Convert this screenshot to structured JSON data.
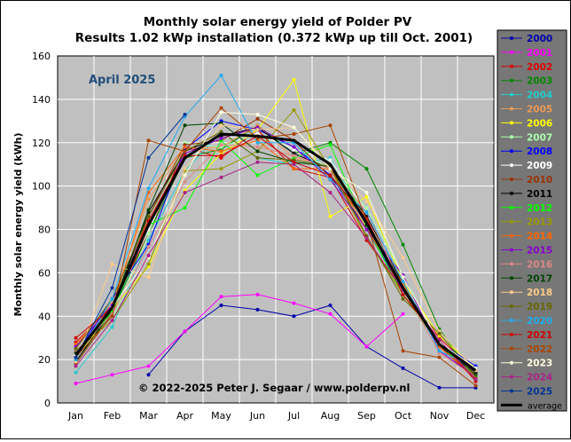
{
  "chart_data": {
    "type": "line",
    "title": "Monthly solar energy yield of Polder PV",
    "subtitle": "Results 1.02 kWp installation (0.372 kWp up till Oct. 2001)",
    "annotation": "April 2025",
    "copyright": "© 2022-2025 Peter J. Segaar / www.polderpv.nl",
    "ylabel": "Monthly solar energy yield (kWh)",
    "xlabel": "",
    "categories": [
      "Jan",
      "Feb",
      "Mar",
      "Apr",
      "May",
      "Jun",
      "Jul",
      "Aug",
      "Sep",
      "Oct",
      "Nov",
      "Dec"
    ],
    "yticks": [
      0,
      20,
      40,
      60,
      80,
      100,
      120,
      140,
      160
    ],
    "ylim": [
      0,
      160
    ],
    "grid": true,
    "legend_position": "right",
    "plot_background": "#c0c0c0",
    "average_label": "average",
    "series": [
      {
        "name": "2000",
        "color": "#0000aa",
        "values": [
          null,
          null,
          13,
          33,
          45,
          43,
          40,
          45,
          26,
          16,
          7,
          7
        ]
      },
      {
        "name": "2001",
        "color": "#ff00ff",
        "values": [
          9,
          13,
          17,
          33,
          49,
          50,
          46,
          41,
          26,
          41,
          null,
          null
        ]
      },
      {
        "name": "2002",
        "color": "#dd0000",
        "values": [
          28,
          45,
          78,
          118,
          113,
          126,
          108,
          104,
          75,
          52,
          30,
          14
        ]
      },
      {
        "name": "2003",
        "color": "#008800",
        "values": [
          19,
          42,
          78,
          113,
          117,
          128,
          115,
          120,
          108,
          73,
          34,
          11
        ]
      },
      {
        "name": "2004",
        "color": "#22cccc",
        "values": [
          14,
          35,
          75,
          107,
          125,
          113,
          110,
          113,
          84,
          55,
          27,
          16
        ]
      },
      {
        "name": "2005",
        "color": "#ee9955",
        "values": [
          27,
          46,
          94,
          117,
          118,
          128,
          113,
          109,
          85,
          53,
          29,
          13
        ]
      },
      {
        "name": "2006",
        "color": "#ffff00",
        "values": [
          21,
          43,
          63,
          98,
          115,
          126,
          149,
          86,
          95,
          56,
          31,
          16
        ]
      },
      {
        "name": "2007",
        "color": "#aaffaa",
        "values": [
          17,
          38,
          78,
          120,
          118,
          124,
          117,
          108,
          90,
          59,
          27,
          12
        ]
      },
      {
        "name": "2008",
        "color": "#0000ff",
        "values": [
          22,
          48,
          73,
          117,
          130,
          126,
          118,
          105,
          80,
          52,
          28,
          17
        ]
      },
      {
        "name": "2009",
        "color": "#ffffff",
        "values": [
          21,
          45,
          80,
          115,
          122,
          124,
          117,
          112,
          88,
          53,
          29,
          14
        ]
      },
      {
        "name": "2010",
        "color": "#993300",
        "values": [
          18,
          41,
          86,
          119,
          121,
          131,
          121,
          104,
          84,
          52,
          26,
          11
        ]
      },
      {
        "name": "2011",
        "color": "#000000",
        "values": [
          19,
          43,
          88,
          116,
          123,
          127,
          115,
          108,
          86,
          55,
          26,
          14
        ]
      },
      {
        "name": "2012",
        "color": "#00ff00",
        "values": [
          23,
          42,
          82,
          90,
          121,
          105,
          113,
          119,
          81,
          50,
          27,
          12
        ]
      },
      {
        "name": "2013",
        "color": "#999900",
        "values": [
          24,
          38,
          64,
          107,
          108,
          116,
          135,
          108,
          76,
          50,
          27,
          16
        ]
      },
      {
        "name": "2014",
        "color": "#ff6600",
        "values": [
          27,
          44,
          97,
          118,
          116,
          121,
          108,
          108,
          80,
          55,
          26,
          12
        ]
      },
      {
        "name": "2015",
        "color": "#8800cc",
        "values": [
          26,
          45,
          82,
          115,
          122,
          127,
          118,
          103,
          80,
          59,
          24,
          12
        ]
      },
      {
        "name": "2016",
        "color": "#dd8888",
        "values": [
          24,
          41,
          72,
          102,
          119,
          118,
          114,
          108,
          88,
          53,
          23,
          12
        ]
      },
      {
        "name": "2017",
        "color": "#004400",
        "values": [
          23,
          44,
          89,
          128,
          129,
          116,
          111,
          109,
          82,
          52,
          27,
          13
        ]
      },
      {
        "name": "2018",
        "color": "#ffcc88",
        "values": [
          19,
          64,
          58,
          108,
          128,
          126,
          127,
          109,
          93,
          67,
          33,
          15
        ]
      },
      {
        "name": "2019",
        "color": "#666600",
        "values": [
          25,
          48,
          86,
          116,
          125,
          113,
          112,
          109,
          77,
          48,
          32,
          12
        ]
      },
      {
        "name": "2020",
        "color": "#22aaee",
        "values": [
          20,
          48,
          99,
          132,
          151,
          120,
          120,
          103,
          88,
          56,
          24,
          16
        ]
      },
      {
        "name": "2021",
        "color": "#cc0000",
        "values": [
          30,
          44,
          84,
          114,
          114,
          123,
          111,
          105,
          85,
          50,
          29,
          10
        ]
      },
      {
        "name": "2022",
        "color": "#aa4400",
        "values": [
          21,
          40,
          121,
          116,
          136,
          122,
          124,
          128,
          84,
          24,
          21,
          8
        ]
      },
      {
        "name": "2023",
        "color": "#ffffe0",
        "values": [
          22,
          44,
          67,
          105,
          134,
          133,
          127,
          108,
          97,
          58,
          28,
          16
        ]
      },
      {
        "name": "2024",
        "color": "#aa2288",
        "values": [
          17,
          38,
          68,
          97,
          104,
          111,
          110,
          97,
          76,
          52,
          29,
          11
        ]
      },
      {
        "name": "2025",
        "color": "#003399",
        "values": [
          21,
          53,
          113,
          133,
          null,
          null,
          null,
          null,
          null,
          null,
          null,
          null
        ]
      },
      {
        "name": "average",
        "color": "#000000",
        "values": [
          22,
          44,
          82,
          113,
          124,
          123,
          121,
          110,
          83,
          53,
          27,
          15
        ]
      }
    ]
  }
}
